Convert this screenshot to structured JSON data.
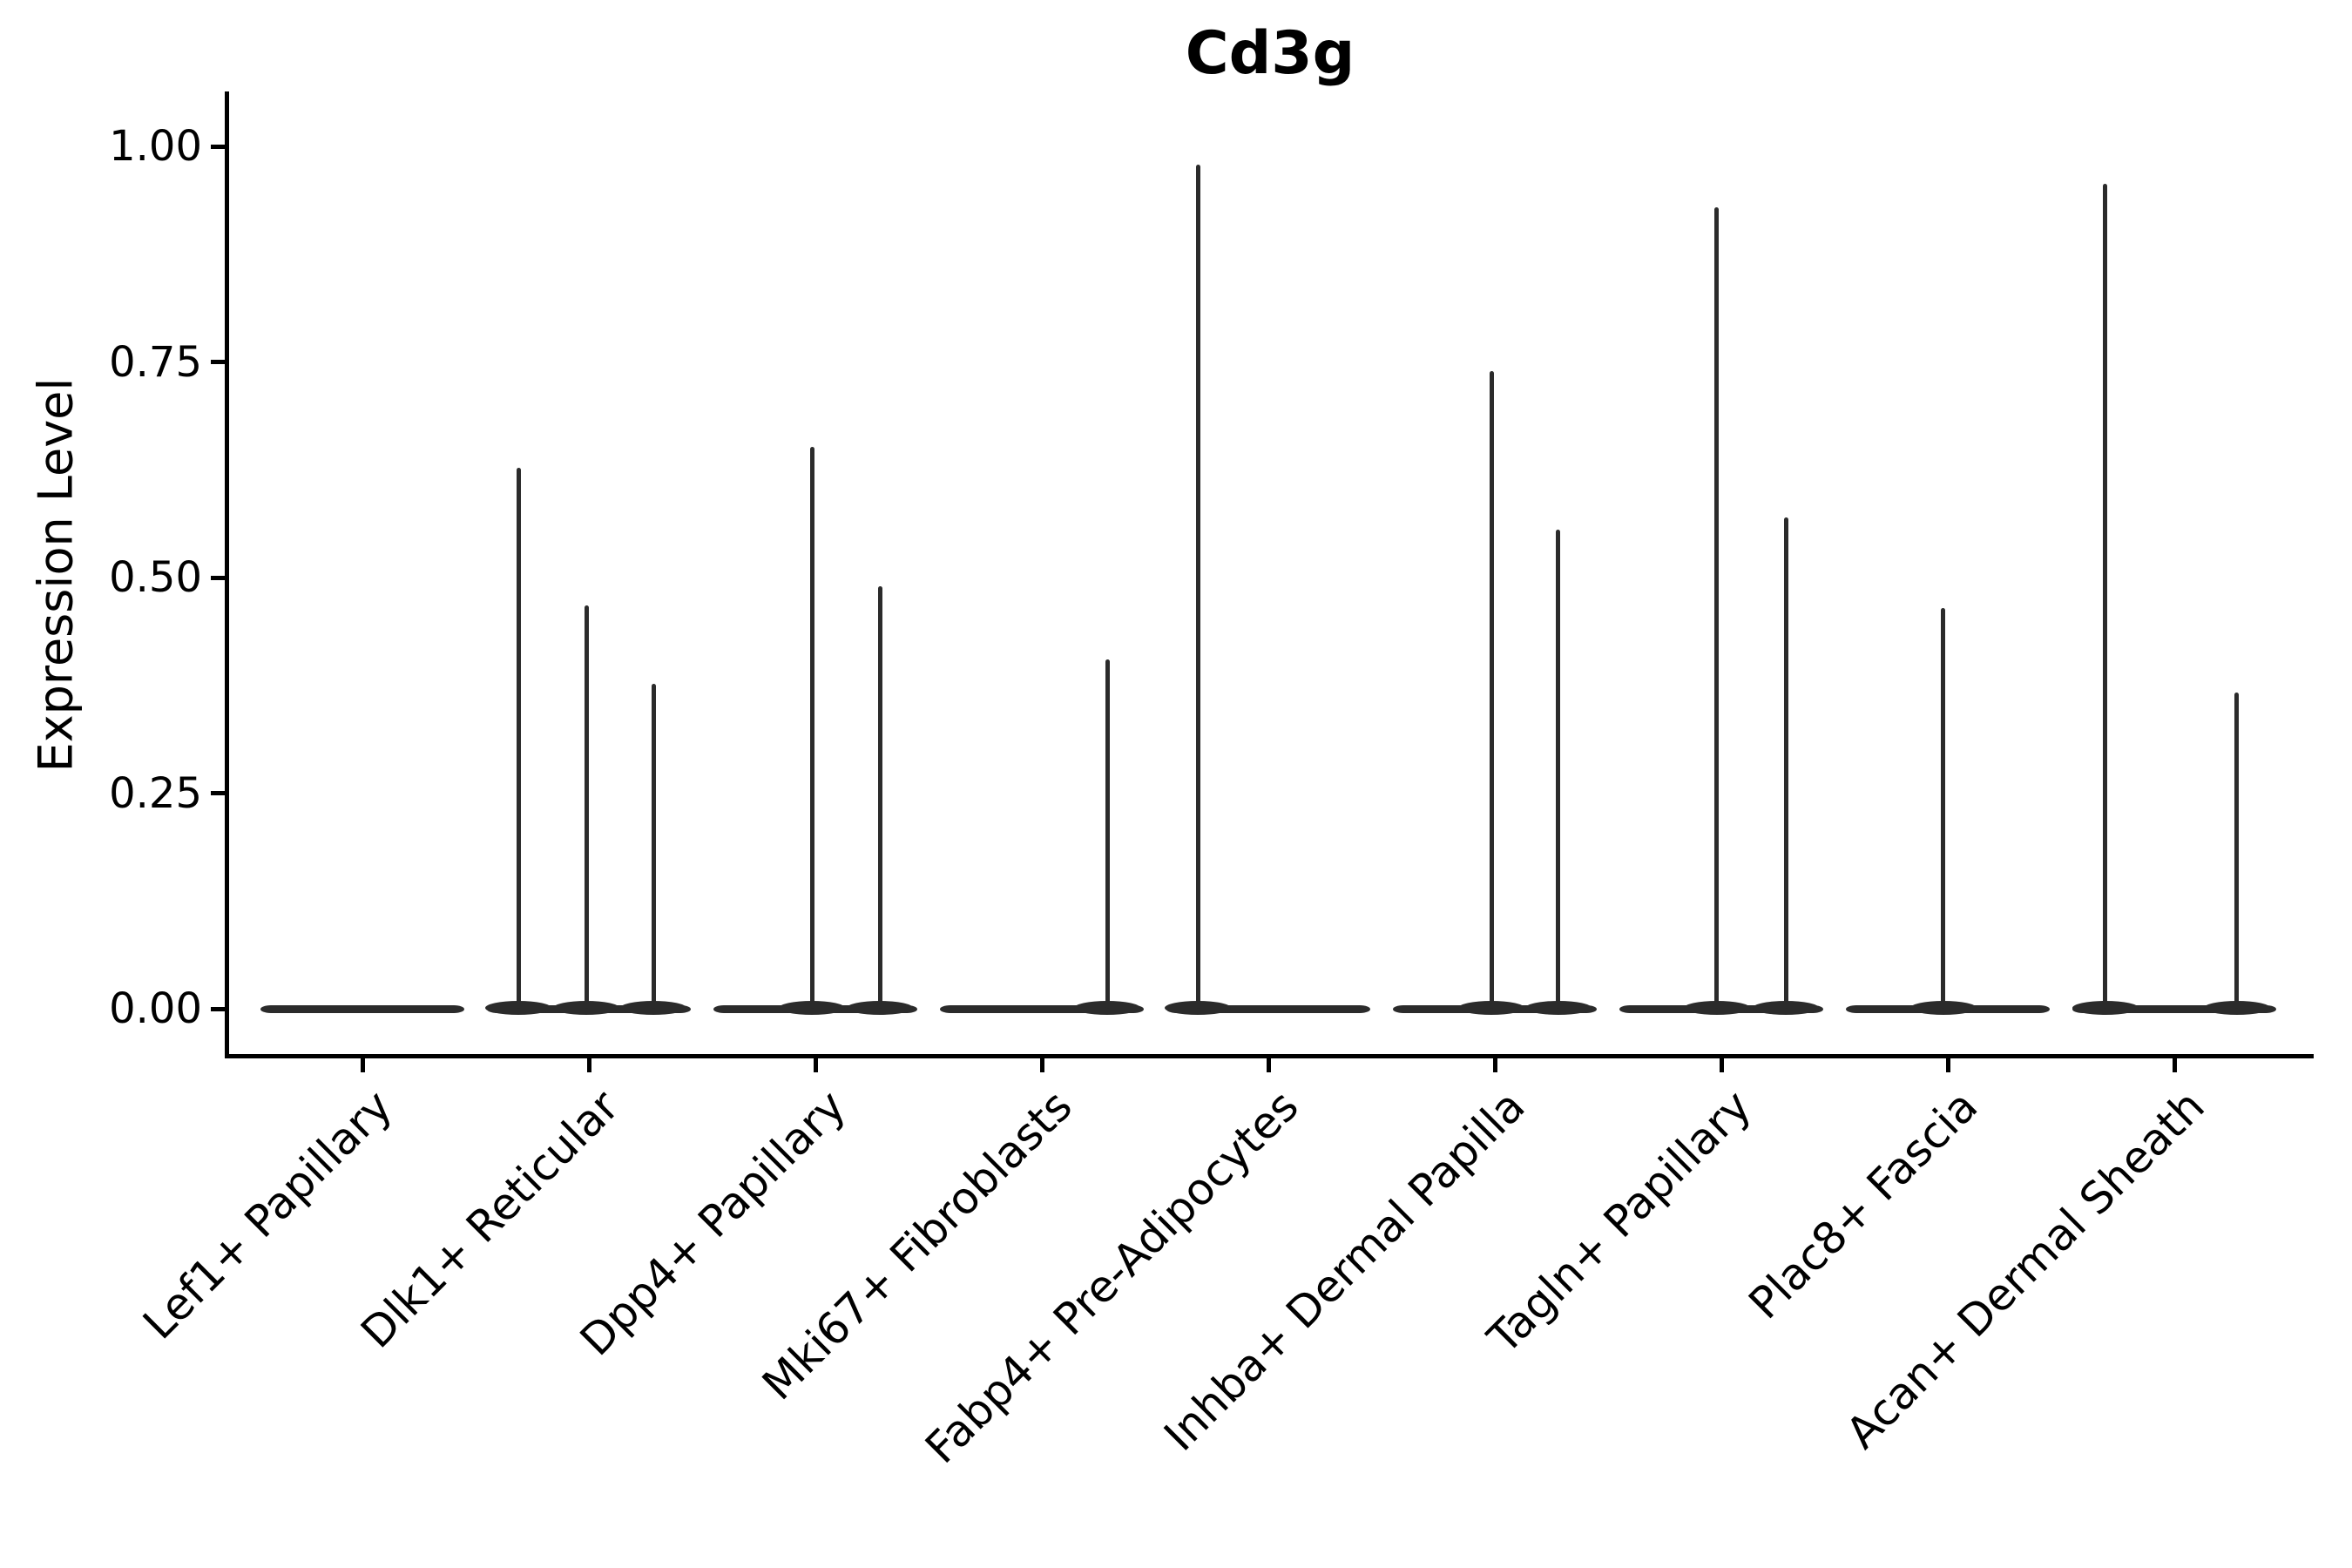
{
  "chart_data": {
    "type": "violin",
    "title": "Cd3g",
    "xlabel": "",
    "ylabel": "Expression Level",
    "ylim": [
      0,
      1.0
    ],
    "grid": false,
    "legend": false,
    "yticks": [
      {
        "label": "1.00",
        "value": 1.0
      },
      {
        "label": "0.75",
        "value": 0.75
      },
      {
        "label": "0.50",
        "value": 0.5
      },
      {
        "label": "0.25",
        "value": 0.25
      },
      {
        "label": "0.00",
        "value": 0.0
      }
    ],
    "categories": [
      "Lef1+ Papillary",
      "Dlk1+ Reticular",
      "Dpp4+ Papillary",
      "Mki67+ Fibroblasts",
      "Fabp4+ Pre-Adipocytes",
      "Inhba+ Dermal Papilla",
      "Tagln+ Papillary",
      "Plac8+ Fascia",
      "Acan+ Dermal Sheath"
    ],
    "series": [
      {
        "category": "Lef1+ Papillary",
        "baseline": 0.0,
        "spikes": []
      },
      {
        "category": "Dlk1+ Reticular",
        "baseline": 0.0,
        "spikes": [
          {
            "offset": -0.31,
            "value": 0.627
          },
          {
            "offset": -0.01,
            "value": 0.468
          },
          {
            "offset": 0.285,
            "value": 0.377
          }
        ]
      },
      {
        "category": "Dpp4+ Papillary",
        "baseline": 0.0,
        "spikes": [
          {
            "offset": -0.015,
            "value": 0.652
          },
          {
            "offset": 0.285,
            "value": 0.49
          }
        ]
      },
      {
        "category": "Mki67+ Fibroblasts",
        "baseline": 0.0,
        "spikes": [
          {
            "offset": 0.29,
            "value": 0.405
          }
        ]
      },
      {
        "category": "Fabp4+ Pre-Adipocytes",
        "baseline": 0.0,
        "spikes": [
          {
            "offset": -0.31,
            "value": 0.979
          }
        ]
      },
      {
        "category": "Inhba+ Dermal Papilla",
        "baseline": 0.0,
        "spikes": [
          {
            "offset": -0.015,
            "value": 0.739
          },
          {
            "offset": 0.28,
            "value": 0.556
          }
        ]
      },
      {
        "category": "Tagln+ Papillary",
        "baseline": 0.0,
        "spikes": [
          {
            "offset": -0.02,
            "value": 0.929
          },
          {
            "offset": 0.285,
            "value": 0.57
          }
        ]
      },
      {
        "category": "Plac8+ Fascia",
        "baseline": 0.0,
        "spikes": [
          {
            "offset": -0.02,
            "value": 0.465
          }
        ]
      },
      {
        "category": "Acan+ Dermal Sheath",
        "baseline": 0.0,
        "spikes": [
          {
            "offset": -0.305,
            "value": 0.957
          },
          {
            "offset": 0.275,
            "value": 0.367
          }
        ]
      }
    ],
    "colors": {
      "line": "#2b2b2b",
      "axis": "#000000",
      "background": "#ffffff"
    }
  }
}
